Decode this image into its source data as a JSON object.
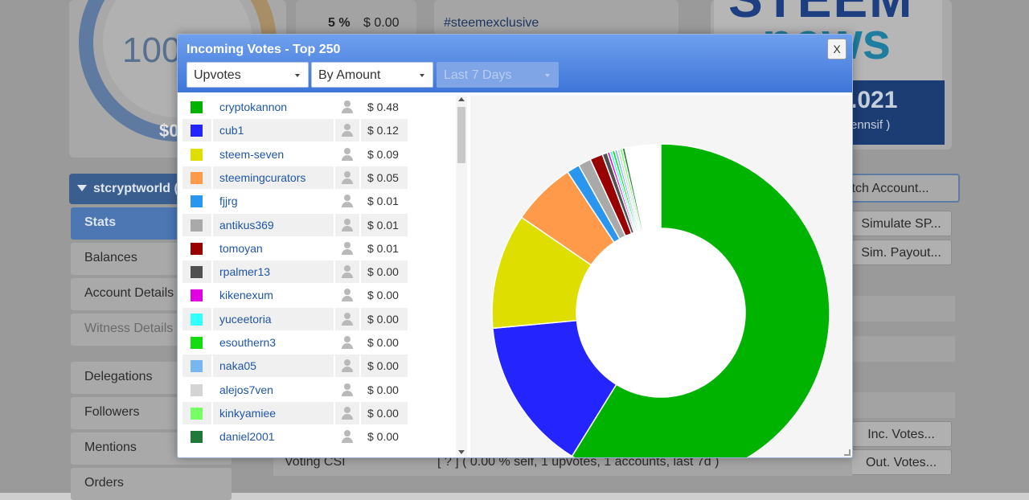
{
  "background": {
    "gauge": {
      "value_text": "100.",
      "sub_text": "$0"
    },
    "vote_row": {
      "percent": "5 %",
      "value": "$ 0.00"
    },
    "tag": "#steemexclusive",
    "news": {
      "line1": "STEEM",
      "line2": "news",
      "year": ".021",
      "name": "ennsif )"
    },
    "account": {
      "name": "stcryptworld ("
    },
    "sidebar": [
      {
        "label": "Stats",
        "active": true
      },
      {
        "label": "Balances"
      },
      {
        "label": "Account Details"
      },
      {
        "label": "Witness Details",
        "muted": true
      },
      {
        "label": "Delegations"
      },
      {
        "label": "Followers"
      },
      {
        "label": "Mentions"
      },
      {
        "label": "Orders"
      }
    ],
    "right_buttons": {
      "switch": "itch Account...",
      "simulate_sp": "Simulate SP...",
      "sim_payout": "Sim. Payout...",
      "inc_votes": "Inc. Votes...",
      "out_votes": "Out. Votes..."
    },
    "voting_csi": {
      "label": "Voting CSI",
      "value": "[ ? ] ( 0.00 % self, 1 upvotes, 1 accounts, last 7d )"
    }
  },
  "modal": {
    "title": "Incoming Votes - Top 250",
    "close_label": "X",
    "filters": {
      "type": "Upvotes",
      "sort": "By Amount",
      "period": "Last 7 Days"
    }
  },
  "chart_data": {
    "type": "pie",
    "style": "donut",
    "categories": [
      "cryptokannon",
      "cub1",
      "steem-seven",
      "steemingcurators",
      "fjjrg",
      "antikus369",
      "tomoyan",
      "rpalmer13",
      "kikenexum",
      "yuceetoria",
      "esouthern3",
      "naka05",
      "alejos7ven",
      "kinkyamiee",
      "daniel2001"
    ],
    "amount_labels": [
      "$ 0.48",
      "$ 0.12",
      "$ 0.09",
      "$ 0.05",
      "$ 0.01",
      "$ 0.01",
      "$ 0.01",
      "$ 0.00",
      "$ 0.00",
      "$ 0.00",
      "$ 0.00",
      "$ 0.00",
      "$ 0.00",
      "$ 0.00",
      "$ 0.00"
    ],
    "values": [
      0.48,
      0.12,
      0.09,
      0.05,
      0.01,
      0.01,
      0.01,
      0.004,
      0.002,
      0.002,
      0.002,
      0.002,
      0.002,
      0.002,
      0.002
    ],
    "remainder_value": 0.028,
    "colors": [
      "#00b300",
      "#2424ff",
      "#dede00",
      "#ff9a4a",
      "#2a96f0",
      "#a9a9a9",
      "#990000",
      "#505050",
      "#e000e0",
      "#33ffff",
      "#11dd11",
      "#77b6ee",
      "#d4d4d4",
      "#77ff66",
      "#1f7a3a"
    ],
    "legend": "left"
  }
}
